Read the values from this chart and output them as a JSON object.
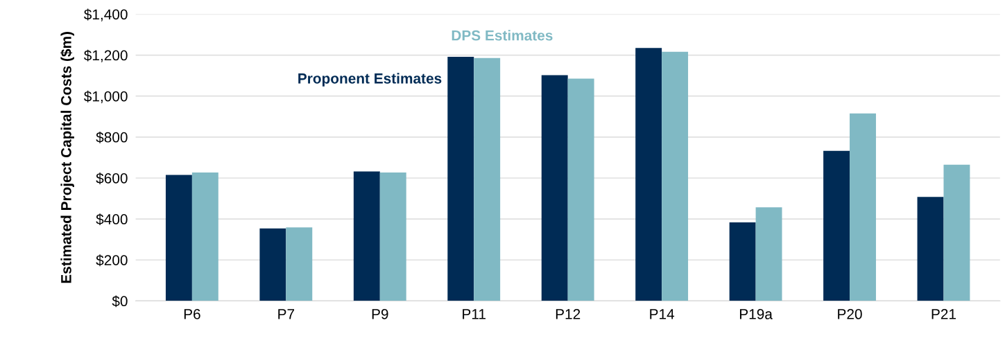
{
  "chart_data": {
    "type": "bar",
    "ylabel": "Estimated Project Capital Costs ($m)",
    "categories": [
      "P6",
      "P7",
      "P9",
      "P11",
      "P12",
      "P14",
      "P19a",
      "P20",
      "P21"
    ],
    "series": [
      {
        "name": "Proponent Estimates",
        "color": "#002b55",
        "values": [
          615,
          354,
          632,
          1192,
          1102,
          1235,
          383,
          733,
          508
        ]
      },
      {
        "name": "DPS Estimates",
        "color": "#80b9c4",
        "values": [
          627,
          359,
          627,
          1186,
          1085,
          1216,
          457,
          915,
          665
        ]
      }
    ],
    "ylim": [
      0,
      1400
    ],
    "yticks": [
      {
        "value": 0,
        "label": "$0"
      },
      {
        "value": 200,
        "label": "$200"
      },
      {
        "value": 400,
        "label": "$400"
      },
      {
        "value": 600,
        "label": "$600"
      },
      {
        "value": 800,
        "label": "$800"
      },
      {
        "value": 1000,
        "label": "$1,000"
      },
      {
        "value": 1200,
        "label": "$1,200"
      },
      {
        "value": 1400,
        "label": "$1,400"
      }
    ],
    "grid": "y",
    "legend": false
  }
}
